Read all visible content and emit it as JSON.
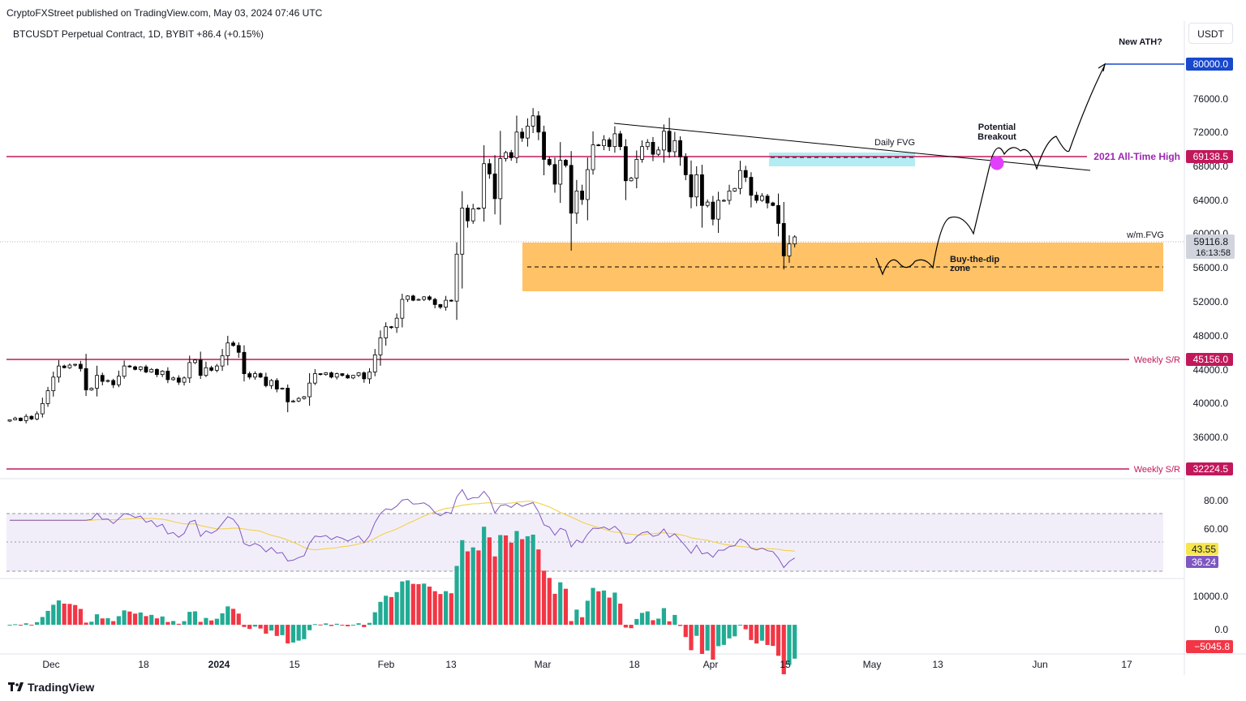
{
  "header": {
    "publisher": "CryptoFXStreet published on TradingView.com, May 03, 2024 07:46 UTC",
    "symbol": "BTCUSDT Perpetual Contract, 1D, BYBIT  +86.4 (+0.15%)",
    "currency": "USDT"
  },
  "footer": {
    "brand": "TradingView",
    "logo_icon": "tradingview-logo-icon"
  },
  "colors": {
    "up": "#ffffff",
    "down": "#000000",
    "level": "#c2185b",
    "zone": "#ffc266",
    "fvg": "#b3ecf2",
    "rsi": "#7e57c2",
    "rsi_ma": "#f2d14c",
    "hist_up": "#22ab94",
    "hist_down": "#f23645",
    "ath_marker": "#e040fb",
    "target": "#1848cc"
  },
  "chart_data": [
    {
      "type": "candlestick",
      "title": "BTCUSDT Perpetual Contract, 1D, BYBIT",
      "x_tick_labels": [
        "Dec",
        "18",
        "2024",
        "15",
        "Feb",
        "13",
        "Mar",
        "18",
        "Apr",
        "15",
        "May",
        "13",
        "Jun",
        "17"
      ],
      "y_tick_labels": [
        "80000.0",
        "76000.0",
        "72000.0",
        "68000.0",
        "64000.0",
        "60000.0",
        "56000.0",
        "52000.0",
        "48000.0",
        "44000.0",
        "40000.0",
        "36000.0"
      ],
      "ylim": [
        30800,
        84400
      ],
      "candles_close": [
        37700,
        37900,
        37600,
        38100,
        37800,
        38400,
        39600,
        41100,
        42700,
        44000,
        43800,
        44100,
        44200,
        43700,
        41200,
        41400,
        42900,
        42200,
        42300,
        41800,
        42800,
        44000,
        43900,
        43600,
        43900,
        43300,
        43600,
        43000,
        43400,
        42400,
        42600,
        42100,
        42600,
        44400,
        44700,
        42900,
        43800,
        43500,
        44000,
        45200,
        46700,
        46400,
        45600,
        43100,
        42700,
        43100,
        42700,
        41700,
        42300,
        41300,
        41400,
        39800,
        39900,
        40200,
        40400,
        42000,
        43100,
        43000,
        43200,
        42700,
        43100,
        42900,
        42600,
        42900,
        43200,
        42500,
        43300,
        45300,
        47300,
        48600,
        48500,
        49600,
        51800,
        52200,
        51700,
        51800,
        52100,
        51800,
        51200,
        50900,
        51700,
        51600,
        57100,
        62500,
        61000,
        62400,
        62500,
        67700,
        66500,
        63600,
        68300,
        69000,
        68400,
        71400,
        70700,
        72100,
        73300,
        71400,
        68200,
        67600,
        65300,
        68100,
        67500,
        61900,
        64500,
        63500,
        67000,
        69900,
        69800,
        70500,
        69700,
        71200,
        69700,
        65700,
        66000,
        68200,
        69700,
        70200,
        68800,
        69300,
        71500,
        69100,
        70400,
        68500,
        66400,
        63800,
        66400,
        62800,
        63200,
        61200,
        63400,
        63400,
        64500,
        64800,
        66900,
        66100,
        64000,
        63400,
        63900,
        63100,
        62800,
        60700,
        56900,
        58300,
        59116.8
      ],
      "levels": [
        {
          "value": 69138.5,
          "label": "2021 All-Time High",
          "price_tag": "69138.5"
        },
        {
          "value": 45156.0,
          "label": "Weekly S/R",
          "price_tag": "45156.0"
        },
        {
          "value": 32224.5,
          "label": "Weekly S/R",
          "price_tag": "32224.5"
        }
      ],
      "target": {
        "value": 80000.0,
        "price_tag": "80000.0",
        "label": "New ATH?"
      },
      "last_price": {
        "value": "59116.8",
        "countdown": "16:13:58"
      },
      "annotations": {
        "daily_fvg": "Daily FVG",
        "wm_fvg": "w/m.FVG",
        "dip_zone_line1": "Buy-the-dip",
        "dip_zone_line2": "zone",
        "breakout_line1": "Potential",
        "breakout_line2": "Breakout"
      },
      "zones": [
        {
          "name": "Buy-the-dip zone",
          "from": 53200,
          "to": 59200
        },
        {
          "name": "Daily FVG",
          "from": 68000,
          "to": 69900
        }
      ]
    },
    {
      "type": "line",
      "title": "RSI",
      "y_tick_labels": [
        "80.00",
        "60.00"
      ],
      "ylim": [
        26,
        92
      ],
      "band": [
        30,
        70
      ],
      "rsi_value": "36.24",
      "ma_value": "43.55"
    },
    {
      "type": "bar",
      "title": "Momentum histogram",
      "y_tick_labels": [
        "10000.0",
        "0.0"
      ],
      "ylim": [
        -7200,
        13000
      ],
      "last_value": "−5045.8"
    }
  ]
}
